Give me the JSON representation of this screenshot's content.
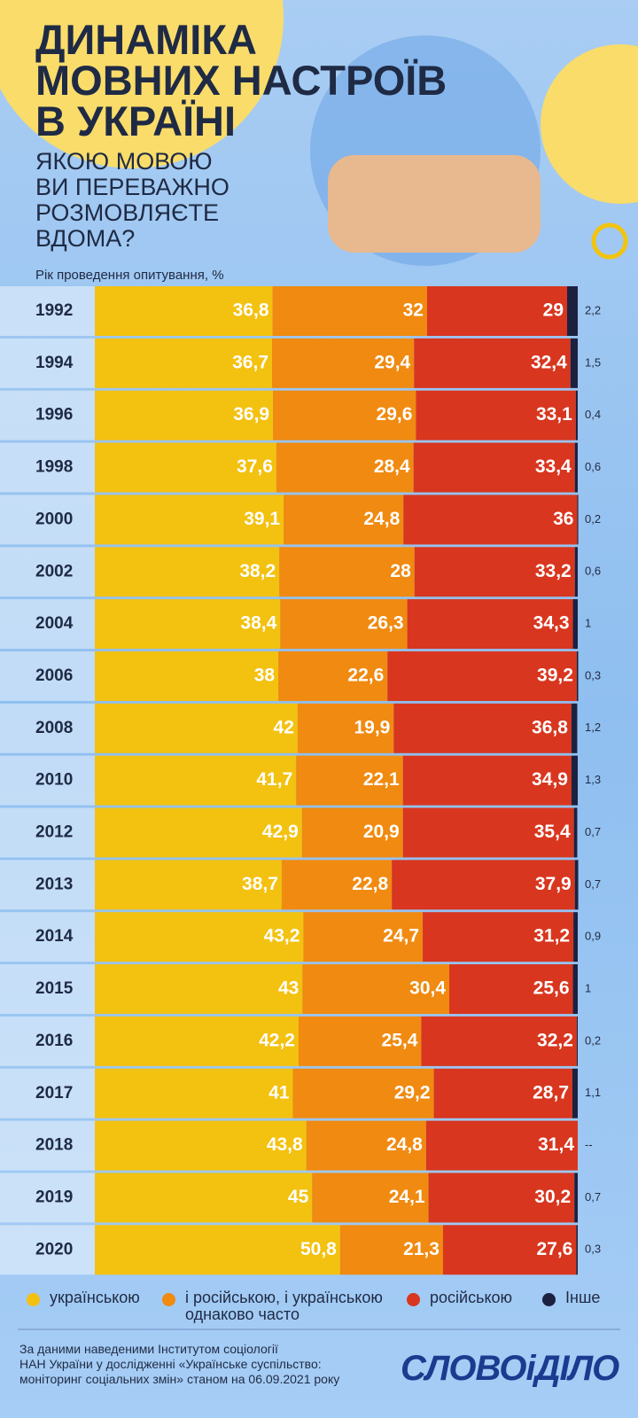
{
  "chart_data": {
    "type": "stacked-bar-horizontal",
    "title": "ДИНАМІКА\nМОВНИХ НАСТРОЇВ\nВ УКРАЇНІ",
    "subtitle": "ЯКОЮ МОВОЮ\nВИ ПЕРЕВАЖНО\nРОЗМОВЛЯЄТЕ\nВДОМА?",
    "axis_label": "Рік проведення опитування, %",
    "categories": [
      "1992",
      "1994",
      "1996",
      "1998",
      "2000",
      "2002",
      "2004",
      "2006",
      "2008",
      "2010",
      "2012",
      "2013",
      "2014",
      "2015",
      "2016",
      "2017",
      "2018",
      "2019",
      "2020"
    ],
    "xlim": [
      0,
      100
    ],
    "legend": "bottom",
    "series": [
      {
        "name": "українською",
        "color": "#f3c10f",
        "values": [
          36.8,
          36.7,
          36.9,
          37.6,
          39.1,
          38.2,
          38.4,
          38,
          42,
          41.7,
          42.9,
          38.7,
          43.2,
          43,
          42.2,
          41,
          43.8,
          45,
          50.8
        ],
        "value_labels": [
          "36,8",
          "36,7",
          "36,9",
          "37,6",
          "39,1",
          "38,2",
          "38,4",
          "38",
          "42",
          "41,7",
          "42,9",
          "38,7",
          "43,2",
          "43",
          "42,2",
          "41",
          "43,8",
          "45",
          "50,8"
        ]
      },
      {
        "name": "і російською, і українською\nоднаково часто",
        "color": "#f08a10",
        "values": [
          32,
          29.4,
          29.6,
          28.4,
          24.8,
          28,
          26.3,
          22.6,
          19.9,
          22.1,
          20.9,
          22.8,
          24.7,
          30.4,
          25.4,
          29.2,
          24.8,
          24.1,
          21.3
        ],
        "value_labels": [
          "32",
          "29,4",
          "29,6",
          "28,4",
          "24,8",
          "28",
          "26,3",
          "22,6",
          "19,9",
          "22,1",
          "20,9",
          "22,8",
          "24,7",
          "30,4",
          "25,4",
          "29,2",
          "24,8",
          "24,1",
          "21,3"
        ]
      },
      {
        "name": "російською",
        "color": "#d8361f",
        "values": [
          29,
          32.4,
          33.1,
          33.4,
          36,
          33.2,
          34.3,
          39.2,
          36.8,
          34.9,
          35.4,
          37.9,
          31.2,
          25.6,
          32.2,
          28.7,
          31.4,
          30.2,
          27.6
        ],
        "value_labels": [
          "29",
          "32,4",
          "33,1",
          "33,4",
          "36",
          "33,2",
          "34,3",
          "39,2",
          "36,8",
          "34,9",
          "35,4",
          "37,9",
          "31,2",
          "25,6",
          "32,2",
          "28,7",
          "31,4",
          "30,2",
          "27,6"
        ]
      },
      {
        "name": "Інше",
        "color": "#1c2140",
        "values": [
          2.2,
          1.5,
          0.4,
          0.6,
          0.2,
          0.6,
          1,
          0.3,
          1.2,
          1.3,
          0.7,
          0.7,
          0.9,
          1,
          0.2,
          1.1,
          null,
          0.7,
          0.3
        ],
        "value_labels": [
          "2,2",
          "1,5",
          "0,4",
          "0,6",
          "0,2",
          "0,6",
          "1",
          "0,3",
          "1,2",
          "1,3",
          "0,7",
          "0,7",
          "0,9",
          "1",
          "0,2",
          "1,1",
          "--",
          "0,7",
          "0,3"
        ]
      }
    ],
    "source": "За даними  наведеними Інститутом соціології\nНАН України у дослідженні «Українське суспільство:\nмоніторинг соціальних змін» станом на 06.09.2021 року",
    "logo": "СЛОВОіДІЛО"
  }
}
